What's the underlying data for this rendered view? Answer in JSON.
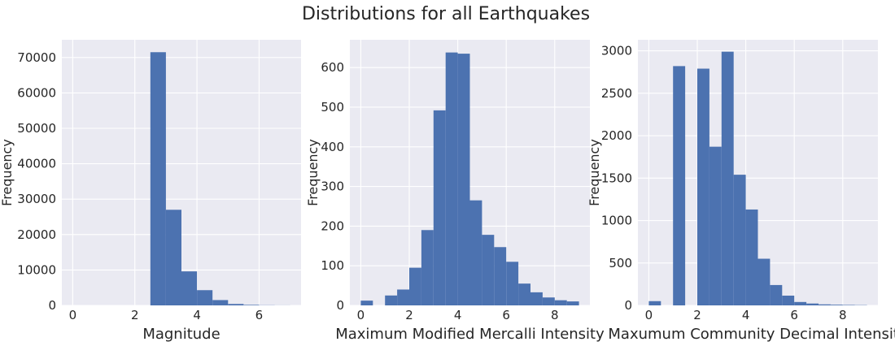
{
  "figure": {
    "title": "Distributions for all Earthquakes"
  },
  "colors": {
    "bar": "#4C72B0",
    "panel_bg": "#EAEAF2",
    "grid": "#ffffff",
    "text": "#262626"
  },
  "chart_data": [
    {
      "type": "bar",
      "name": "magnitude",
      "xlabel": "Magnitude",
      "ylabel": "Frequency",
      "grid": true,
      "xlim": [
        -0.35,
        7.35
      ],
      "ylim": [
        0,
        75000
      ],
      "xticks": [
        0,
        2,
        4,
        6
      ],
      "yticks": [
        0,
        10000,
        20000,
        30000,
        40000,
        50000,
        60000,
        70000
      ],
      "bin_edges": [
        0,
        0.5,
        1,
        1.5,
        2,
        2.5,
        3,
        3.5,
        4,
        4.5,
        5,
        5.5,
        6,
        6.5,
        7
      ],
      "values": [
        0,
        0,
        0,
        0,
        0,
        71500,
        27000,
        9600,
        4300,
        1500,
        400,
        150,
        50,
        20
      ]
    },
    {
      "type": "bar",
      "name": "mmi",
      "xlabel": "Maximum Modified Mercalli Intensity",
      "ylabel": "Frequency",
      "grid": true,
      "xlim": [
        -0.45,
        9.45
      ],
      "ylim": [
        0,
        670
      ],
      "xticks": [
        0,
        2,
        4,
        6,
        8
      ],
      "yticks": [
        0,
        100,
        200,
        300,
        400,
        500,
        600
      ],
      "bin_edges": [
        0,
        0.5,
        1,
        1.5,
        2,
        2.5,
        3,
        3.5,
        4,
        4.5,
        5,
        5.5,
        6,
        6.5,
        7,
        7.5,
        8,
        8.5,
        9
      ],
      "values": [
        12,
        0,
        25,
        40,
        95,
        190,
        492,
        638,
        635,
        265,
        178,
        147,
        110,
        55,
        33,
        20,
        13,
        10
      ]
    },
    {
      "type": "bar",
      "name": "cdi",
      "xlabel": "Maxumum Community Decimal Intensity",
      "ylabel": "Frequency",
      "grid": true,
      "xlim": [
        -0.45,
        9.45
      ],
      "ylim": [
        0,
        3130
      ],
      "xticks": [
        0,
        2,
        4,
        6,
        8
      ],
      "yticks": [
        0,
        500,
        1000,
        1500,
        2000,
        2500,
        3000
      ],
      "bin_edges": [
        0,
        0.5,
        1,
        1.5,
        2,
        2.5,
        3,
        3.5,
        4,
        4.5,
        5,
        5.5,
        6,
        6.5,
        7,
        7.5,
        8,
        8.5,
        9
      ],
      "values": [
        50,
        0,
        2820,
        0,
        2790,
        1870,
        2990,
        1540,
        1130,
        550,
        240,
        115,
        40,
        22,
        12,
        8,
        5,
        3
      ]
    }
  ]
}
